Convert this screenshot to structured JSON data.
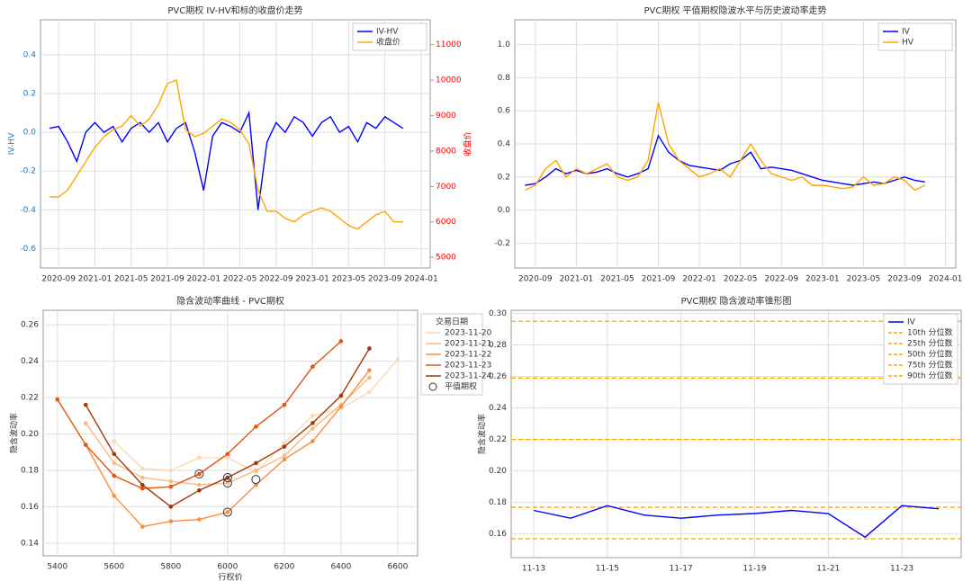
{
  "chart_data": [
    {
      "type": "line",
      "title": "PVC期权 IV-HV和标的收盘价走势",
      "ylabel": "IV-HV",
      "y2label": "收盘价",
      "y_color": "#1f77b4",
      "y2_color": "red",
      "grid": true,
      "legend": "upper right",
      "x": [
        "2020-08",
        "2020-09",
        "2020-10",
        "2020-11",
        "2020-12",
        "2021-01",
        "2021-02",
        "2021-03",
        "2021-04",
        "2021-05",
        "2021-06",
        "2021-07",
        "2021-08",
        "2021-09",
        "2021-10",
        "2021-11",
        "2021-12",
        "2022-01",
        "2022-02",
        "2022-03",
        "2022-04",
        "2022-05",
        "2022-06",
        "2022-07",
        "2022-08",
        "2022-09",
        "2022-10",
        "2022-11",
        "2022-12",
        "2023-01",
        "2023-02",
        "2023-03",
        "2023-04",
        "2023-05",
        "2023-06",
        "2023-07",
        "2023-08",
        "2023-09",
        "2023-10",
        "2023-11"
      ],
      "xticks": [
        "2020-09",
        "2021-01",
        "2021-05",
        "2021-09",
        "2022-01",
        "2022-05",
        "2022-09",
        "2023-01",
        "2023-05",
        "2023-09",
        "2024-01"
      ],
      "ylim": [
        -0.7,
        0.58
      ],
      "yticks": [
        -0.6,
        -0.4,
        -0.2,
        {
          "value": 0,
          "label": "0.0"
        },
        0.2,
        0.4
      ],
      "y2lim": [
        4700,
        11700
      ],
      "y2ticks": [
        5000,
        6000,
        7000,
        8000,
        9000,
        10000,
        11000
      ],
      "series": [
        {
          "name": "IV-HV",
          "color": "#0000ff",
          "values": [
            0.02,
            0.03,
            -0.05,
            -0.15,
            0.0,
            0.05,
            0.0,
            0.03,
            -0.05,
            0.02,
            0.05,
            0.0,
            0.05,
            -0.05,
            0.02,
            0.05,
            -0.1,
            -0.3,
            -0.02,
            0.05,
            0.03,
            0.0,
            0.1,
            -0.4,
            -0.05,
            0.05,
            0.0,
            0.08,
            0.05,
            -0.02,
            0.05,
            0.08,
            0.0,
            0.03,
            -0.05,
            0.05,
            0.02,
            0.08,
            0.05,
            0.02
          ]
        },
        {
          "name": "收盘价",
          "color": "orange",
          "axis": "y2",
          "values": [
            6700,
            6700,
            6900,
            7300,
            7700,
            8100,
            8400,
            8600,
            8700,
            9000,
            8700,
            8900,
            9300,
            9900,
            10000,
            8600,
            8400,
            8500,
            8700,
            8900,
            8800,
            8600,
            8200,
            6900,
            6300,
            6300,
            6100,
            6000,
            6200,
            6300,
            6400,
            6300,
            6100,
            5900,
            5800,
            6000,
            6200,
            6300,
            6000,
            6000
          ]
        }
      ]
    },
    {
      "type": "line",
      "title": "PVC期权 平值期权隐波水平与历史波动率走势",
      "grid": true,
      "legend": "upper right",
      "x": [
        "2020-08",
        "2020-09",
        "2020-10",
        "2020-11",
        "2020-12",
        "2021-01",
        "2021-02",
        "2021-03",
        "2021-04",
        "2021-05",
        "2021-06",
        "2021-07",
        "2021-08",
        "2021-09",
        "2021-10",
        "2021-11",
        "2021-12",
        "2022-01",
        "2022-02",
        "2022-03",
        "2022-04",
        "2022-05",
        "2022-06",
        "2022-07",
        "2022-08",
        "2022-09",
        "2022-10",
        "2022-11",
        "2022-12",
        "2023-01",
        "2023-02",
        "2023-03",
        "2023-04",
        "2023-05",
        "2023-06",
        "2023-07",
        "2023-08",
        "2023-09",
        "2023-10",
        "2023-11"
      ],
      "xticks": [
        "2020-09",
        "2021-01",
        "2021-05",
        "2021-09",
        "2022-01",
        "2022-05",
        "2022-09",
        "2023-01",
        "2023-05",
        "2023-09",
        "2024-01"
      ],
      "ylim": [
        -0.35,
        1.15
      ],
      "yticks": [
        -0.2,
        {
          "value": 0,
          "label": "0.0"
        },
        0.2,
        0.4,
        0.6,
        0.8,
        {
          "value": 1,
          "label": "1.0"
        }
      ],
      "series": [
        {
          "name": "IV",
          "color": "#0000ff",
          "values": [
            0.15,
            0.16,
            0.2,
            0.25,
            0.22,
            0.24,
            0.22,
            0.23,
            0.25,
            0.22,
            0.2,
            0.22,
            0.25,
            0.45,
            0.35,
            0.3,
            0.27,
            0.26,
            0.25,
            0.24,
            0.28,
            0.3,
            0.35,
            0.25,
            0.26,
            0.25,
            0.24,
            0.22,
            0.2,
            0.18,
            0.17,
            0.16,
            0.15,
            0.16,
            0.17,
            0.16,
            0.18,
            0.2,
            0.18,
            0.17
          ]
        },
        {
          "name": "HV",
          "color": "orange",
          "values": [
            0.12,
            0.15,
            0.25,
            0.3,
            0.2,
            0.25,
            0.22,
            0.25,
            0.28,
            0.2,
            0.18,
            0.2,
            0.3,
            0.65,
            0.4,
            0.3,
            0.25,
            0.2,
            0.22,
            0.25,
            0.2,
            0.3,
            0.4,
            0.3,
            0.22,
            0.2,
            0.18,
            0.2,
            0.15,
            0.15,
            0.14,
            0.13,
            0.14,
            0.2,
            0.15,
            0.16,
            0.2,
            0.18,
            0.12,
            0.15
          ]
        }
      ]
    },
    {
      "type": "line",
      "title": "隐含波动率曲线 - PVC期权",
      "xlabel": "行权价",
      "ylabel": "隐含波动率",
      "grid": true,
      "legend": "outside right",
      "legend_title": "交易日期",
      "markers": true,
      "xlim": [
        5350,
        6670
      ],
      "xticks": [
        5400,
        5600,
        5800,
        6000,
        6200,
        6400,
        6600
      ],
      "ylim": [
        0.133,
        0.268
      ],
      "yticks": [
        0.14,
        0.16,
        0.18,
        {
          "value": 0.2,
          "label": "0.20"
        },
        0.22,
        0.24,
        0.26
      ],
      "series": [
        {
          "name": "2023-11-20",
          "color": "#fdd9b5",
          "x": [
            5600,
            5700,
            5800,
            5900,
            6000,
            6100,
            6200,
            6300,
            6400,
            6500,
            6600
          ],
          "values": [
            0.196,
            0.181,
            0.18,
            0.187,
            0.187,
            0.179,
            0.195,
            0.21,
            0.214,
            0.223,
            0.241
          ]
        },
        {
          "name": "2023-11-21",
          "color": "#fdb97d",
          "x": [
            5500,
            5600,
            5700,
            5800,
            5900,
            6000,
            6100,
            6200,
            6300,
            6400,
            6500
          ],
          "values": [
            0.206,
            0.184,
            0.176,
            0.174,
            0.172,
            0.173,
            0.18,
            0.188,
            0.203,
            0.216,
            0.231
          ]
        },
        {
          "name": "2023-11-22",
          "color": "#fd8d3c",
          "x": [
            5500,
            5600,
            5700,
            5800,
            5900,
            6000,
            6100,
            6200,
            6300,
            6400,
            6500
          ],
          "values": [
            0.194,
            0.166,
            0.149,
            0.152,
            0.153,
            0.157,
            0.172,
            0.186,
            0.196,
            0.215,
            0.235
          ]
        },
        {
          "name": "2023-11-23",
          "color": "#e6550d",
          "x": [
            5400,
            5500,
            5600,
            5700,
            5800,
            5900,
            6000,
            6100,
            6200,
            6300,
            6400
          ],
          "values": [
            0.219,
            0.194,
            0.177,
            0.17,
            0.171,
            0.178,
            0.189,
            0.204,
            0.216,
            0.237,
            0.251
          ]
        },
        {
          "name": "2023-11-24",
          "color": "#a63603",
          "x": [
            5500,
            5600,
            5700,
            5800,
            5900,
            6000,
            6100,
            6200,
            6300,
            6400,
            6500
          ],
          "values": [
            0.216,
            0.189,
            0.172,
            0.16,
            0.169,
            0.176,
            0.184,
            0.193,
            0.206,
            0.221,
            0.247
          ]
        }
      ],
      "atm": {
        "name": "平值期权",
        "x": [
          5900,
          6000,
          6000,
          6000,
          6100
        ],
        "values": [
          0.178,
          0.176,
          0.173,
          0.157,
          0.175
        ]
      }
    },
    {
      "type": "line",
      "title": "PVC期权 隐含波动率锥形图",
      "ylabel": "隐含波动率",
      "grid": true,
      "legend": "upper right",
      "x": [
        "11-13",
        null,
        "11-15",
        null,
        "11-17",
        null,
        "11-19",
        null,
        "11-21",
        null,
        "11-23",
        null
      ],
      "ylim": [
        0.145,
        0.302
      ],
      "yticks": [
        0.16,
        0.18,
        {
          "value": 0.2,
          "label": "0.20"
        },
        0.22,
        0.24,
        0.26,
        0.28,
        {
          "value": 0.3,
          "label": "0.30"
        }
      ],
      "series": [
        {
          "name": "IV",
          "color": "#0000ff",
          "values": [
            0.175,
            0.17,
            0.178,
            0.172,
            0.17,
            0.172,
            0.173,
            0.175,
            0.173,
            0.158,
            0.178,
            0.176
          ]
        }
      ],
      "hlines": [
        {
          "name": "10th 分位数",
          "color": "orange",
          "value": 0.157
        },
        {
          "name": "25th 分位数",
          "color": "orange",
          "value": 0.177
        },
        {
          "name": "50th 分位数",
          "color": "orange",
          "value": 0.22
        },
        {
          "name": "75th 分位数",
          "color": "orange",
          "value": 0.259
        },
        {
          "name": "90th 分位数",
          "color": "orange",
          "value": 0.295
        }
      ]
    }
  ]
}
